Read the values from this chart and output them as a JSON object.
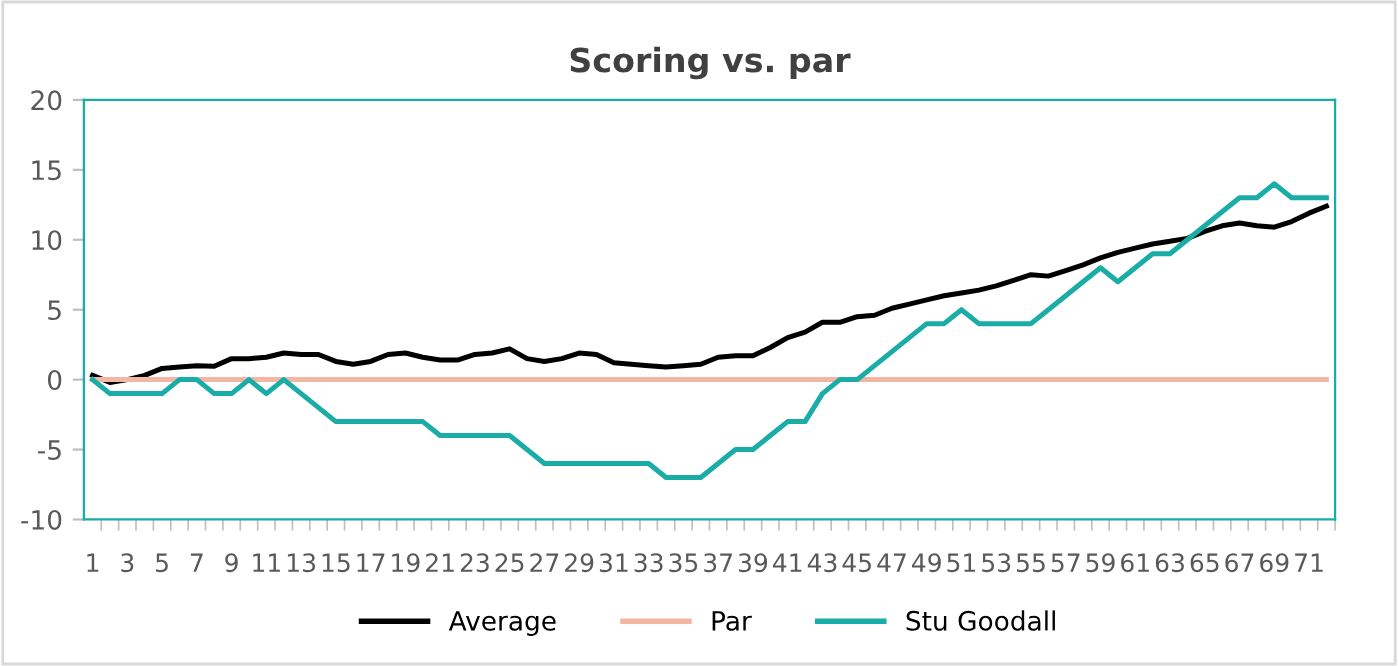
{
  "chart_data": {
    "type": "line",
    "title": "Scoring vs. par",
    "categories": [
      "1",
      null,
      "3",
      null,
      "5",
      null,
      "7",
      null,
      "9",
      null,
      "11",
      null,
      "13",
      null,
      "15",
      null,
      "17",
      null,
      "19",
      null,
      "21",
      null,
      "23",
      null,
      "25",
      null,
      "27",
      null,
      "29",
      null,
      "31",
      null,
      "33",
      null,
      "35",
      null,
      "37",
      null,
      "39",
      null,
      "41",
      null,
      "43",
      null,
      "45",
      null,
      "47",
      null,
      "49",
      null,
      "51",
      null,
      "53",
      null,
      "55",
      null,
      "57",
      null,
      "59",
      null,
      "61",
      null,
      "63",
      null,
      "65",
      null,
      "67",
      null,
      "69",
      null,
      "71",
      null
    ],
    "series": [
      {
        "name": "Average",
        "color": "#000000",
        "values": [
          0.3,
          -0.2,
          0,
          0.3,
          0.8,
          0.9,
          1.0,
          0.95,
          1.5,
          1.5,
          1.6,
          1.9,
          1.8,
          1.8,
          1.3,
          1.1,
          1.3,
          1.8,
          1.9,
          1.6,
          1.4,
          1.4,
          1.8,
          1.9,
          2.2,
          1.5,
          1.3,
          1.5,
          1.9,
          1.8,
          1.2,
          1.1,
          1.0,
          0.9,
          1.0,
          1.1,
          1.6,
          1.7,
          1.7,
          2.3,
          3.0,
          3.4,
          4.1,
          4.1,
          4.5,
          4.6,
          5.1,
          5.4,
          5.7,
          6.0,
          6.2,
          6.4,
          6.7,
          7.1,
          7.5,
          7.4,
          7.8,
          8.2,
          8.7,
          9.1,
          9.4,
          9.7,
          9.9,
          10.1,
          10.6,
          11.0,
          11.2,
          11.0,
          10.9,
          11.3,
          11.9,
          12.4
        ]
      },
      {
        "name": "Par",
        "color": "#f4b6a4",
        "values": [
          0,
          0,
          0,
          0,
          0,
          0,
          0,
          0,
          0,
          0,
          0,
          0,
          0,
          0,
          0,
          0,
          0,
          0,
          0,
          0,
          0,
          0,
          0,
          0,
          0,
          0,
          0,
          0,
          0,
          0,
          0,
          0,
          0,
          0,
          0,
          0,
          0,
          0,
          0,
          0,
          0,
          0,
          0,
          0,
          0,
          0,
          0,
          0,
          0,
          0,
          0,
          0,
          0,
          0,
          0,
          0,
          0,
          0,
          0,
          0,
          0,
          0,
          0,
          0,
          0,
          0,
          0,
          0,
          0,
          0,
          0,
          0
        ]
      },
      {
        "name": "Stu Goodall",
        "color": "#1aaca7",
        "values": [
          0,
          -1,
          -1,
          -1,
          -1,
          0,
          0,
          -1,
          -1,
          0,
          -1,
          0,
          -1,
          -2,
          -3,
          -3,
          -3,
          -3,
          -3,
          -3,
          -4,
          -4,
          -4,
          -4,
          -4,
          -5,
          -6,
          -6,
          -6,
          -6,
          -6,
          -6,
          -6,
          -7,
          -7,
          -7,
          -6,
          -5,
          -5,
          -4,
          -3,
          -3,
          -1,
          0,
          0,
          1,
          2,
          3,
          4,
          4,
          5,
          4,
          4,
          4,
          4,
          5,
          6,
          7,
          8,
          7,
          8,
          9,
          9,
          10,
          11,
          12,
          13,
          13,
          14,
          13,
          13,
          13
        ]
      }
    ],
    "ylim": [
      -10,
      20
    ],
    "yticks": [
      -10,
      -5,
      0,
      5,
      10,
      15,
      20
    ],
    "grid": false,
    "legend": "bottom",
    "marker": "none",
    "line_style": "solid"
  }
}
